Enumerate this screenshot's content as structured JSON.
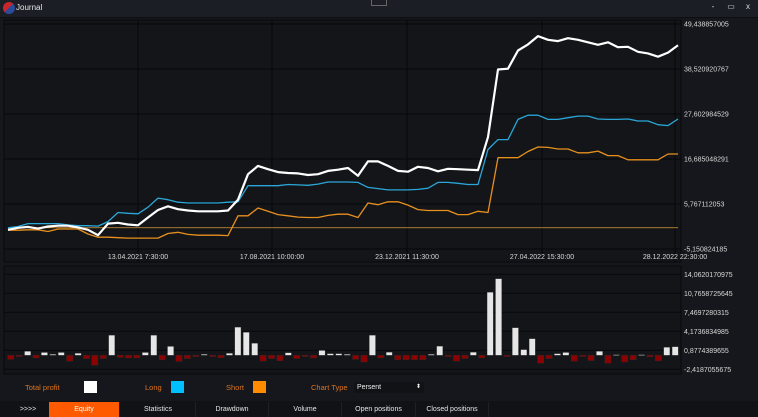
{
  "window": {
    "title": "Journal",
    "minimize": "-",
    "maximize": "▭",
    "close": "x",
    "logo_icon": "app-logo-icon"
  },
  "legend": {
    "total_profit": {
      "label": "Total profit",
      "color": "#ffffff"
    },
    "long": {
      "label": "Long",
      "color": "#00bfff"
    },
    "short": {
      "label": "Short",
      "color": "#ff8c00"
    },
    "chart_type": {
      "label": "Chart Type",
      "value": "Persent"
    }
  },
  "tabs": [
    {
      "label": ">>>>"
    },
    {
      "label": "Equity",
      "active": true
    },
    {
      "label": "Statistics"
    },
    {
      "label": "Drawdown"
    },
    {
      "label": "Volume"
    },
    {
      "label": "Open positions"
    },
    {
      "label": "Closed positions"
    }
  ],
  "colors": {
    "accent": "#ff5a00",
    "positive_bar": "#e6e6e6",
    "negative_bar": "#8b0000",
    "label": "#e0731e"
  },
  "chart_data": [
    {
      "type": "line",
      "x_tick_labels": [
        "13.04.2021 7:30:00",
        "17.08.2021 10:00:00",
        "23.12.2021 11:30:00",
        "27.04.2022 15:30:00",
        "28.12.2022 22:30:00"
      ],
      "y_tick_labels": [
        "49,438857005",
        "38,520920767",
        "27,602984529",
        "16,685048291",
        "5,767112053",
        "-5,150824185"
      ],
      "ylim": [
        -5.150824185,
        49.438857005
      ],
      "grid": true,
      "series": [
        {
          "name": "Total profit",
          "color": "#ffffff",
          "values": [
            -0.5,
            0,
            0.2,
            -0.2,
            0.3,
            0.5,
            0.5,
            0.1,
            -0.5,
            -1.8,
            1.0,
            1.2,
            0.8,
            0.6,
            2.5,
            4.3,
            5.2,
            4.5,
            4.2,
            4.0,
            4.0,
            4.0,
            4.2,
            6.8,
            13.0,
            15.0,
            14.2,
            13.5,
            13.3,
            13.2,
            12.8,
            13.0,
            13.8,
            14.1,
            14.5,
            12.6,
            16.1,
            16.1,
            15.0,
            13.8,
            13.6,
            14.8,
            14.5,
            13.7,
            14.3,
            14.2,
            14.1,
            14.0,
            22.0,
            38.4,
            38.6,
            43.0,
            44.5,
            46.5,
            45.6,
            45.3,
            46.0,
            45.6,
            45.0,
            44.4,
            45.0,
            43.8,
            43.9,
            42.7,
            42.3,
            41.5,
            42.5,
            44.3
          ]
        },
        {
          "name": "Long",
          "color": "#2aa7d8",
          "values": [
            0,
            0.3,
            1.0,
            1.0,
            1.0,
            1.0,
            0.7,
            0.5,
            0.5,
            0.4,
            1.5,
            3.7,
            3.5,
            3.4,
            5.0,
            7.2,
            6.8,
            6.2,
            6.0,
            6.0,
            6.0,
            6.0,
            6.2,
            6.3,
            10.2,
            10.2,
            10.2,
            10.2,
            10.5,
            10.4,
            10.3,
            10.6,
            11.1,
            11.1,
            11.1,
            11.0,
            9.8,
            9.5,
            9.2,
            9.2,
            9.2,
            9.3,
            9.6,
            11.0,
            11.0,
            10.8,
            10.5,
            10.5,
            19.0,
            21.4,
            21.4,
            26.3,
            27.3,
            27.3,
            26.3,
            26.3,
            26.7,
            27.1,
            27.1,
            26.4,
            26.3,
            26.3,
            26.4,
            25.9,
            25.9,
            25.0,
            24.8,
            26.4
          ]
        },
        {
          "name": "Short",
          "color": "#e8901e",
          "values": [
            -0.6,
            -0.6,
            -0.5,
            -0.5,
            -0.9,
            -0.3,
            -0.3,
            -0.3,
            -1.5,
            -2.3,
            -2.3,
            -2.4,
            -2.5,
            -2.5,
            -2.5,
            -2.5,
            -1.4,
            -1.1,
            -1.6,
            -1.8,
            -1.8,
            -1.8,
            -1.9,
            2.9,
            2.9,
            4.8,
            4.0,
            3.2,
            2.9,
            2.6,
            2.5,
            2.5,
            3.0,
            3.3,
            3.3,
            2.5,
            6.0,
            5.6,
            6.3,
            6.3,
            5.5,
            4.4,
            4.2,
            4.2,
            4.2,
            3.2,
            3.2,
            4.0,
            3.7,
            17.0,
            17.0,
            17.0,
            18.5,
            19.6,
            19.5,
            19.1,
            19.1,
            18.2,
            18.2,
            18.6,
            17.5,
            17.5,
            16.5,
            16.5,
            16.5,
            16.5,
            17.9,
            17.9
          ]
        }
      ]
    },
    {
      "type": "bar",
      "y_tick_labels": [
        "14,0620170975",
        "10,7658725645",
        "7,4697280315",
        "4,1736834985",
        "0,8774389655",
        "-2,4187055675"
      ],
      "ylim": [
        -2.4187055675,
        14.0620170975
      ],
      "grid": true,
      "values": [
        -0.7,
        -0.2,
        0.7,
        -0.45,
        0.5,
        0.17,
        0.5,
        -1.0,
        0.35,
        -0.55,
        -1.7,
        -0.55,
        3.5,
        -0.35,
        -0.45,
        -0.45,
        0.5,
        3.5,
        -0.75,
        1.55,
        -1.05,
        -0.55,
        -0.2,
        0.17,
        -0.2,
        -0.4,
        0.35,
        4.9,
        4.0,
        2.1,
        -1.0,
        -0.55,
        -0.95,
        0.45,
        -0.55,
        -0.2,
        -0.45,
        0.85,
        0.3,
        0.3,
        0.17,
        -0.7,
        -1.15,
        3.5,
        -0.45,
        0.55,
        -0.75,
        -0.75,
        -0.75,
        -0.75,
        0.17,
        1.6,
        -0.2,
        -1.0,
        -0.55,
        0.55,
        -0.45,
        10.95,
        13.3,
        -0.2,
        4.8,
        1.0,
        2.9,
        -1.35,
        -0.55,
        0.3,
        0.5,
        -1.0,
        -0.2,
        -0.9,
        0.7,
        -1.35,
        0.12,
        -1.15,
        -0.75,
        0.12,
        -0.25,
        -0.95,
        1.4,
        1.5
      ]
    }
  ]
}
